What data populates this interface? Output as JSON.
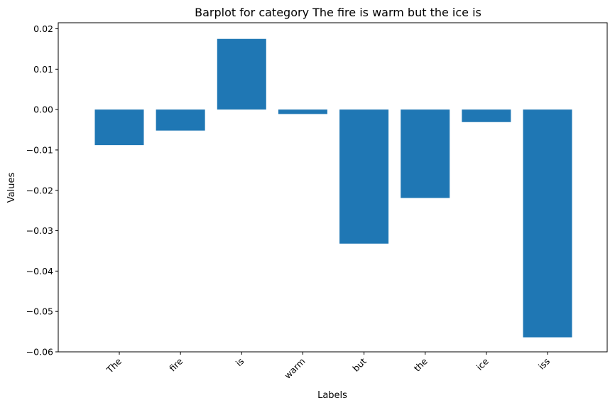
{
  "chart_data": {
    "type": "bar",
    "title": "Barplot for category The fire is warm but the ice is",
    "xlabel": "Labels",
    "ylabel": "Values",
    "categories": [
      "The",
      "fire",
      "is",
      "warm",
      "but",
      "the",
      "ice",
      "iss"
    ],
    "values": [
      -0.0088,
      -0.0052,
      0.0175,
      -0.0011,
      -0.0332,
      -0.0219,
      -0.0031,
      -0.0564
    ],
    "ylim": [
      -0.06,
      0.0215
    ],
    "yticks": [
      0.02,
      0.01,
      0.0,
      -0.01,
      -0.02,
      -0.03,
      -0.04,
      -0.05,
      -0.06
    ],
    "ytick_labels": [
      "0.02",
      "0.01",
      "0.00",
      "−0.01",
      "−0.02",
      "−0.03",
      "−0.04",
      "−0.05",
      "−0.06"
    ],
    "bar_color": "#1f77b4",
    "grid": false,
    "legend": false
  }
}
